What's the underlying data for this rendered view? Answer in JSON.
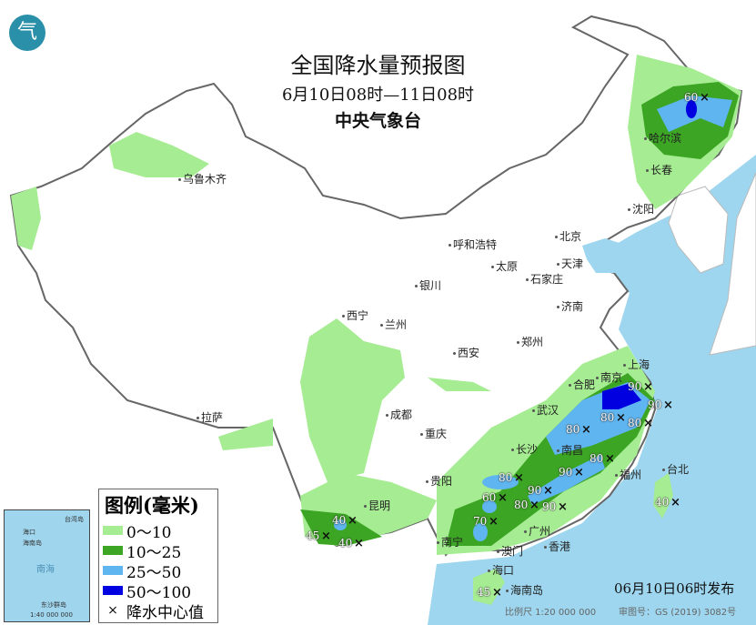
{
  "header": {
    "title": "全国降水量预报图",
    "period": "6月10日08时—11日08时",
    "agency": "中央气象台"
  },
  "logo": {
    "icon": "cma-logo-icon",
    "text": "气"
  },
  "legend": {
    "title": "图例(毫米)",
    "items": [
      {
        "label": "0～10",
        "color": "#a6ec92"
      },
      {
        "label": "10～25",
        "color": "#3ca524"
      },
      {
        "label": "25～50",
        "color": "#5fb5f0"
      },
      {
        "label": "50～100",
        "color": "#0000e0"
      }
    ],
    "center_label": "降水中心值",
    "center_symbol": "×"
  },
  "cities": [
    {
      "name": "乌鲁木齐"
    },
    {
      "name": "哈尔滨"
    },
    {
      "name": "长春"
    },
    {
      "name": "沈阳"
    },
    {
      "name": "北京"
    },
    {
      "name": "天津"
    },
    {
      "name": "呼和浩特"
    },
    {
      "name": "石家庄"
    },
    {
      "name": "太原"
    },
    {
      "name": "济南"
    },
    {
      "name": "银川"
    },
    {
      "name": "西宁"
    },
    {
      "name": "兰州"
    },
    {
      "name": "郑州"
    },
    {
      "name": "西安"
    },
    {
      "name": "合肥"
    },
    {
      "name": "南京"
    },
    {
      "name": "上海"
    },
    {
      "name": "武汉"
    },
    {
      "name": "南昌"
    },
    {
      "name": "长沙"
    },
    {
      "name": "福州"
    },
    {
      "name": "台北"
    },
    {
      "name": "成都"
    },
    {
      "name": "重庆"
    },
    {
      "name": "贵阳"
    },
    {
      "name": "昆明"
    },
    {
      "name": "南宁"
    },
    {
      "name": "广州"
    },
    {
      "name": "澳门"
    },
    {
      "name": "香港"
    },
    {
      "name": "海口"
    },
    {
      "name": "海南岛"
    },
    {
      "name": "拉萨"
    }
  ],
  "precip_centers": [
    {
      "value": "60"
    },
    {
      "value": "90"
    },
    {
      "value": "90"
    },
    {
      "value": "80"
    },
    {
      "value": "80"
    },
    {
      "value": "80"
    },
    {
      "value": "80"
    },
    {
      "value": "90"
    },
    {
      "value": "90"
    },
    {
      "value": "80"
    },
    {
      "value": "90"
    },
    {
      "value": "80"
    },
    {
      "value": "60"
    },
    {
      "value": "70"
    },
    {
      "value": "40"
    },
    {
      "value": "45"
    },
    {
      "value": "40"
    },
    {
      "value": "40"
    },
    {
      "value": "45"
    }
  ],
  "inset": {
    "labels": [
      "海口",
      "海南岛",
      "台湾岛",
      "南海",
      "东沙群岛"
    ],
    "scale": "1:40 000 000"
  },
  "footer": {
    "issued": "06月10日06时发布",
    "scale": "比例尺 1:20 000 000",
    "review_no": "审图号：GS (2019) 3082号"
  }
}
